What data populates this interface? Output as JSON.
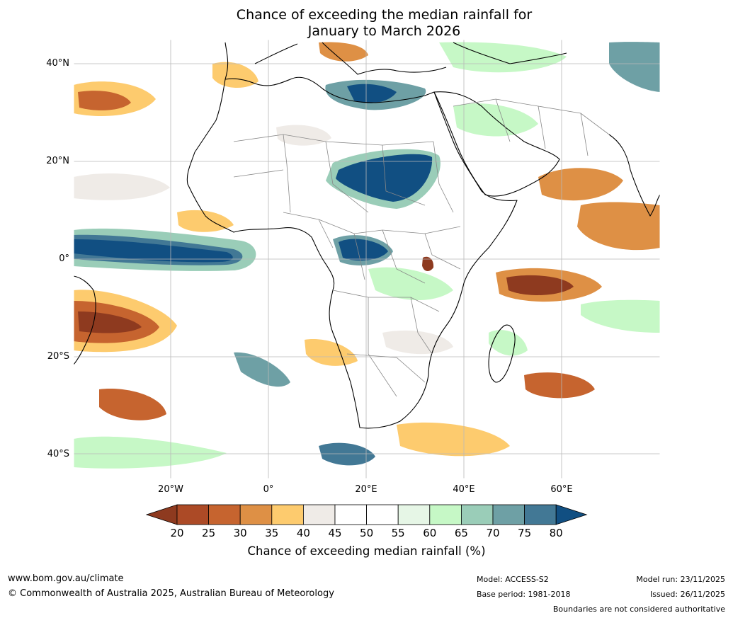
{
  "title": {
    "line1": "Chance of exceeding the median rainfall for",
    "line2": "January to March 2026"
  },
  "axes": {
    "lat_labels": [
      "40°N",
      "20°N",
      "0°",
      "20°S",
      "40°S"
    ],
    "lon_labels": [
      "20°W",
      "0°",
      "20°E",
      "40°E",
      "60°E"
    ],
    "lat_values": [
      40,
      20,
      0,
      -20,
      -40
    ],
    "lon_values": [
      -20,
      0,
      20,
      40,
      60
    ],
    "lon_range": [
      -40,
      80
    ],
    "lat_range": [
      -45,
      45
    ]
  },
  "colorbar": {
    "title": "Chance of exceeding median rainfall (%)",
    "tick_labels": [
      "20",
      "25",
      "30",
      "35",
      "40",
      "45",
      "50",
      "55",
      "60",
      "65",
      "70",
      "75",
      "80"
    ],
    "colors": [
      "#8e3a1f",
      "#ac4a26",
      "#c6642f",
      "#de9045",
      "#fdcb6e",
      "#efebe7",
      "#ffffff",
      "#ffffff",
      "#e6f6e6",
      "#c6f8c6",
      "#9acdb8",
      "#6ea0a5",
      "#427895",
      "#114f82"
    ]
  },
  "footer": {
    "website": "www.bom.gov.au/climate",
    "copyright": "© Commonwealth of Australia 2025, Australian Bureau of Meteorology",
    "model": "Model: ACCESS-S2",
    "base_period": "Base period: 1981-2018",
    "model_run": "Model run: 23/11/2025",
    "issued": "Issued: 26/11/2025",
    "boundaries_note": "Boundaries are not considered authoritative"
  }
}
